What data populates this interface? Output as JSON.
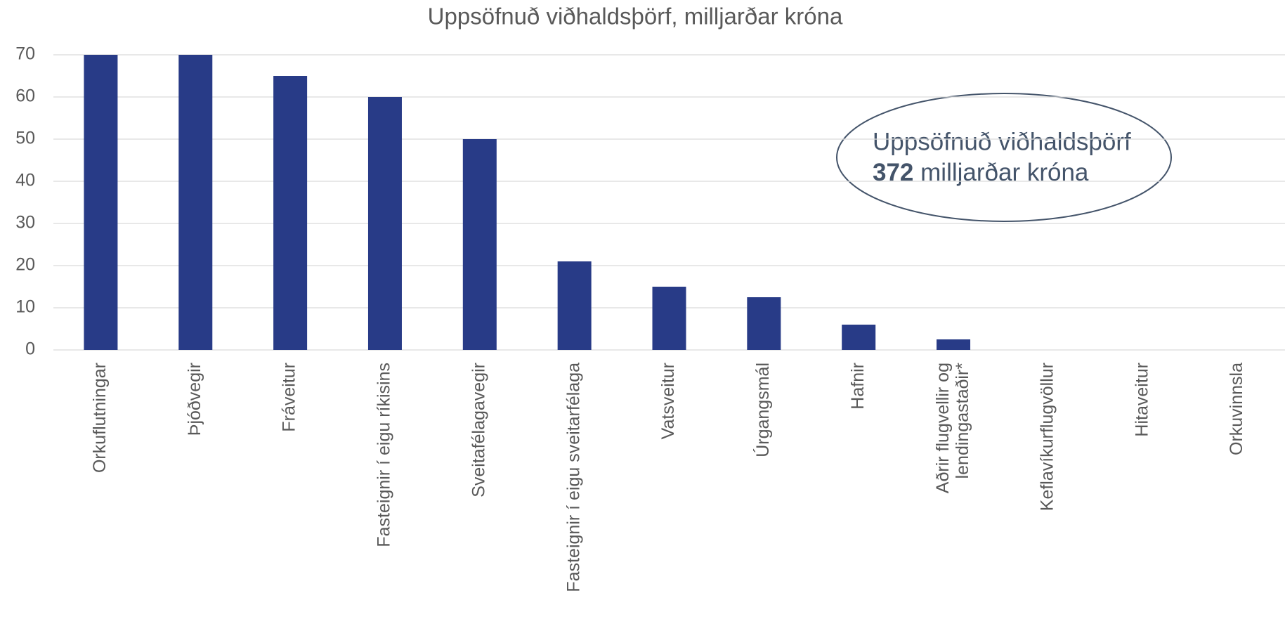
{
  "chart_data": {
    "type": "bar",
    "title": "Uppsöfnuð viðhaldsþörf, milljarðar króna",
    "categories": [
      "Orkuflutningar",
      "Þjóðvegir",
      "Fráveitur",
      "Fasteignir í eigu ríkisins",
      "Sveitafélagavegir",
      "Fasteignir í eigu sveitarfélaga",
      "Vatsveitur",
      "Úrgangsmál",
      "Hafnir",
      "Aðrir flugvellir og\nlendingastaðir*",
      "Keflavíkurflugvöllur",
      "Hitaveitur",
      "Orkuvinnsla"
    ],
    "values": [
      70,
      70,
      65,
      60,
      50,
      21,
      15,
      12.5,
      6,
      2.5,
      0,
      0,
      0
    ],
    "color": "#283b87",
    "ylim": [
      0,
      70
    ],
    "yticks": [
      0,
      10,
      20,
      30,
      40,
      50,
      60,
      70
    ],
    "grid": true,
    "annotation": {
      "title": "Uppsöfnuð viðhaldsþörf",
      "value": 372,
      "unit": "milljarðar króna"
    }
  }
}
